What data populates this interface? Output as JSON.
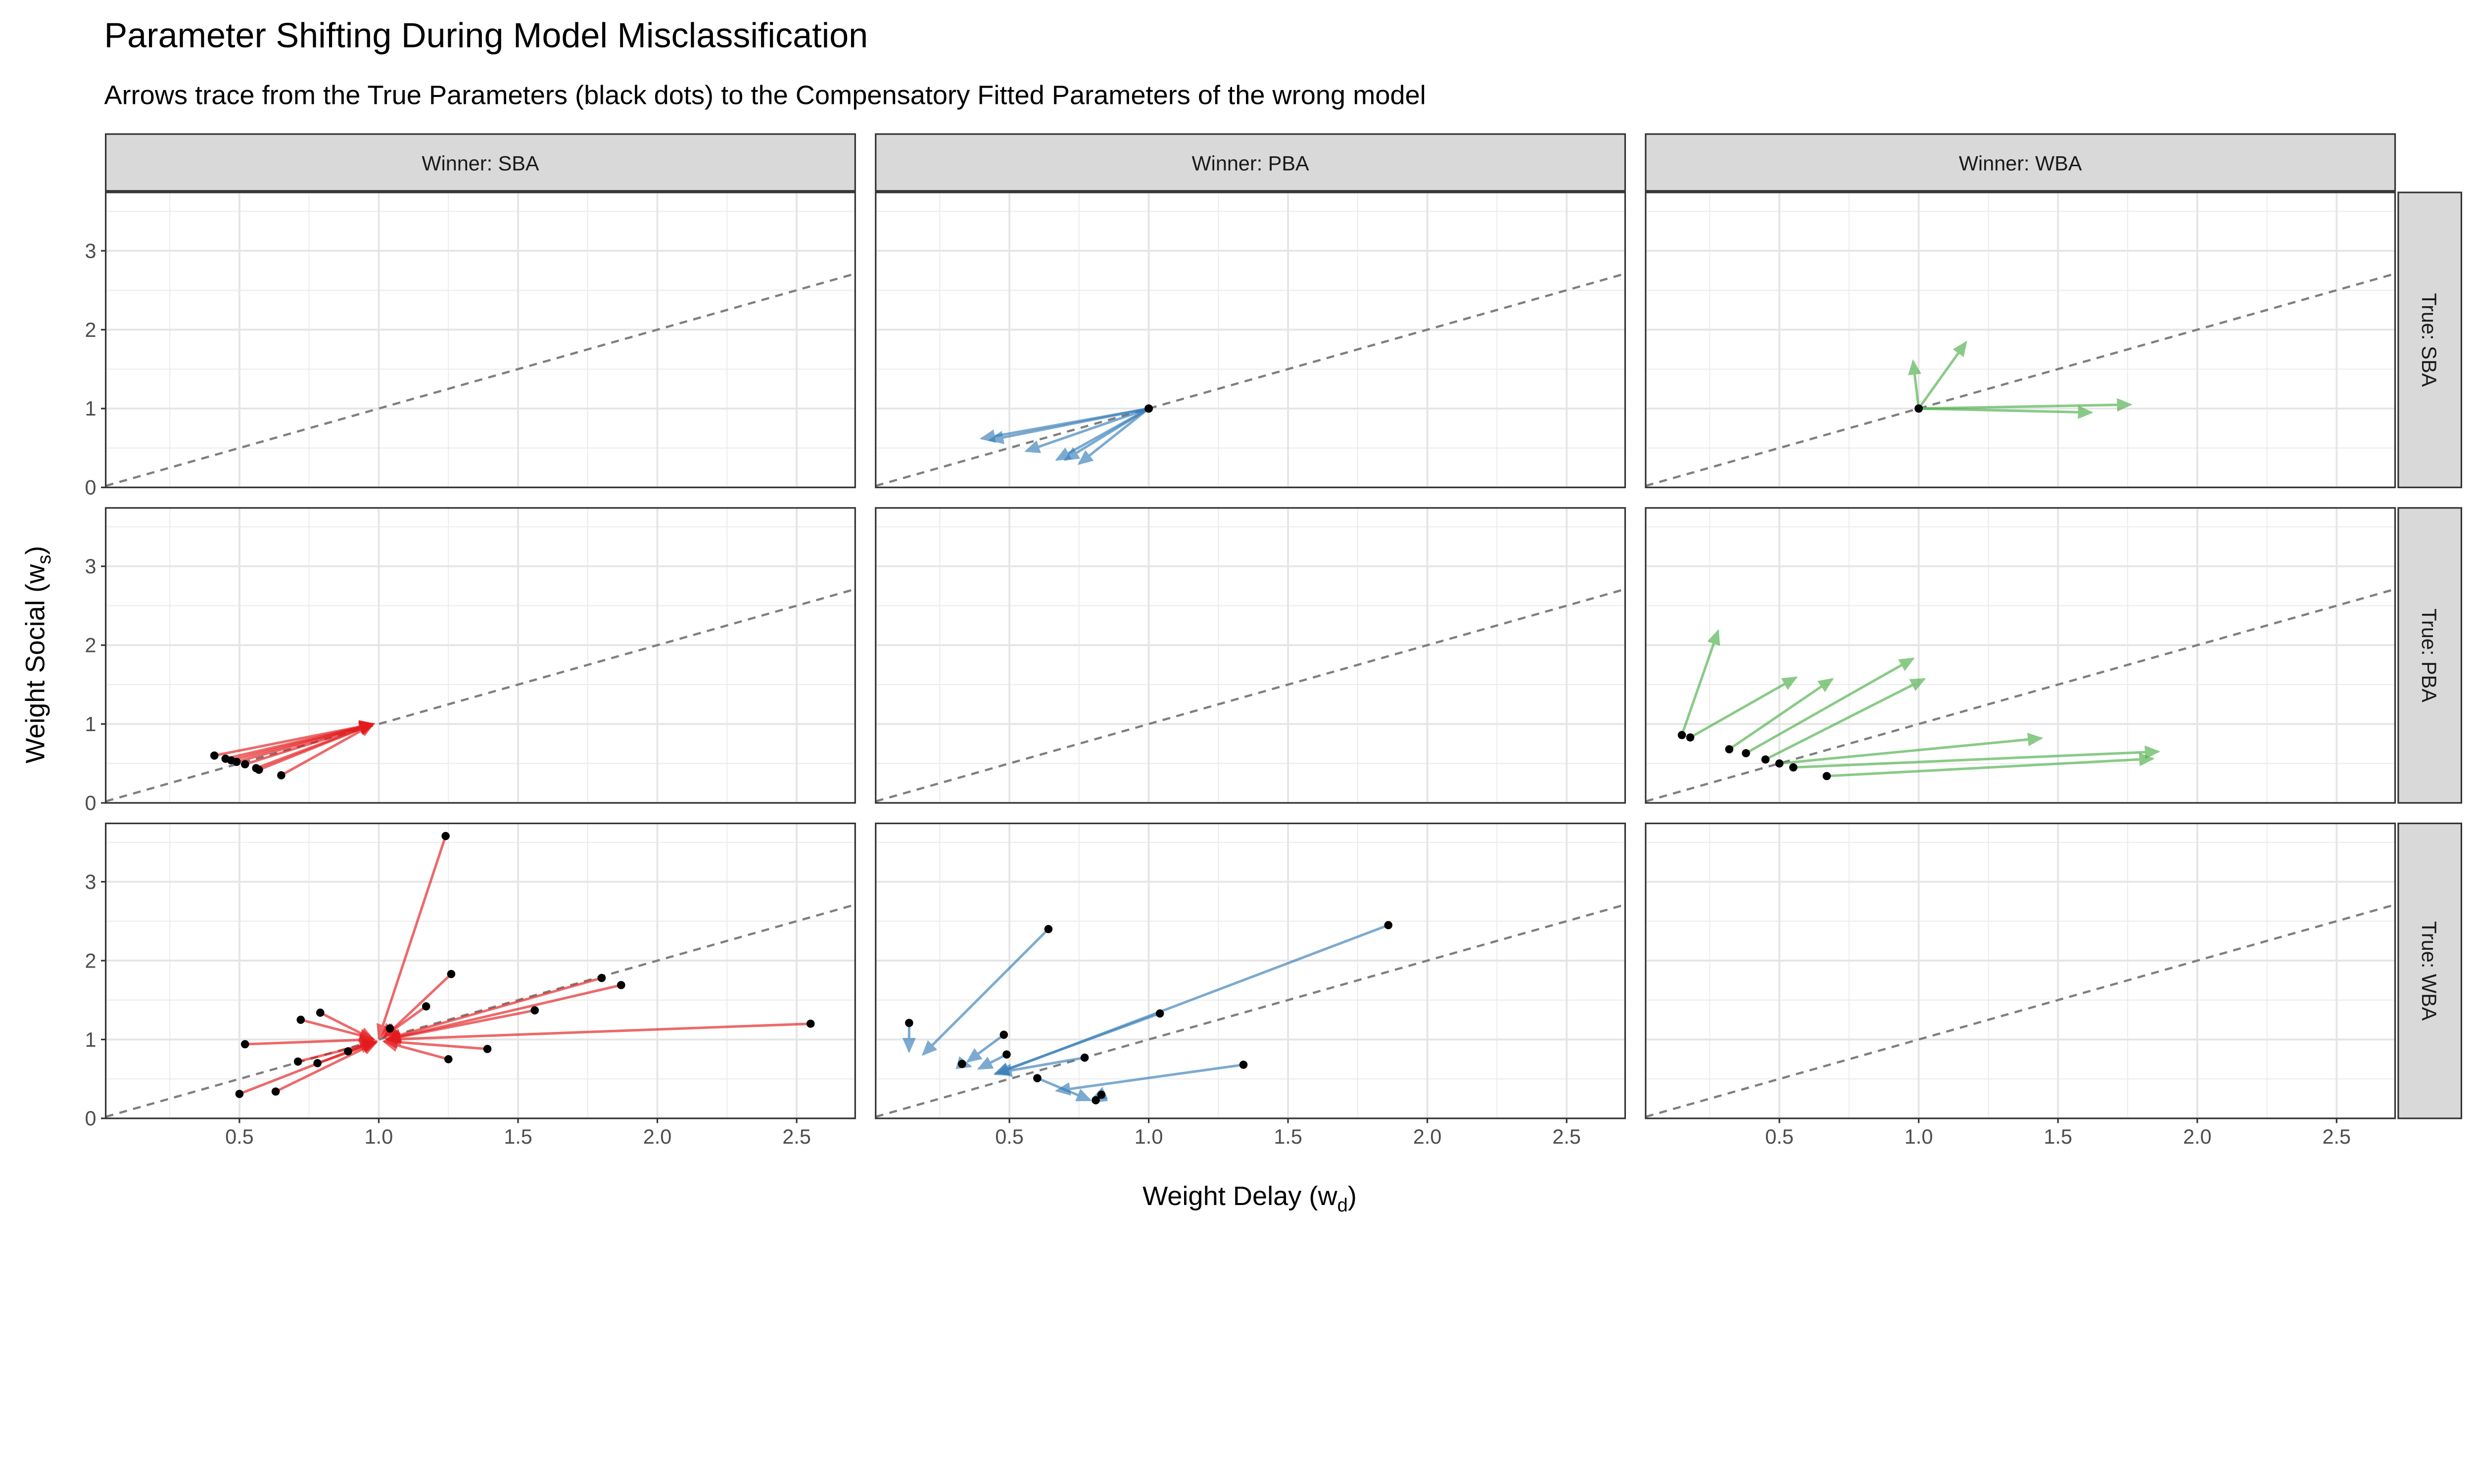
{
  "chart_data": {
    "type": "scatter",
    "title": "Parameter Shifting During Model Misclassification",
    "subtitle": "Arrows trace from the True Parameters (black dots) to the Compensatory Fitted Parameters of the wrong model",
    "xlabel": {
      "main": "Weight Delay (w",
      "sub": "d",
      "close": ")"
    },
    "ylabel": {
      "main": "Weight Social (w",
      "sub": "s",
      "close": ")"
    },
    "xlim": [
      0.02,
      2.71
    ],
    "ylim": [
      0,
      3.74
    ],
    "x_ticks": [
      "0.5",
      "1.0",
      "1.5",
      "2.0",
      "2.5"
    ],
    "y_ticks": [
      "0",
      "1",
      "2",
      "3"
    ],
    "grid": true,
    "reference_line": {
      "slope": 1,
      "intercept": 0,
      "style": "dashed",
      "color": "#7f7f7f"
    },
    "point_color": "#000000",
    "col_strips": [
      "Winner: SBA",
      "Winner: PBA",
      "Winner: WBA"
    ],
    "row_strips": [
      "True: SBA",
      "True: PBA",
      "True: WBA"
    ],
    "winner_colors": {
      "SBA": "#E41A1C",
      "PBA": "#377EB8",
      "WBA": "#4DAF4A"
    },
    "panels": [
      {
        "winner": "SBA",
        "true": "SBA",
        "arrows": []
      },
      {
        "winner": "PBA",
        "true": "SBA",
        "arrows": [
          {
            "from": [
              1.0,
              1.0
            ],
            "to": [
              0.4,
              0.62
            ]
          },
          {
            "from": [
              1.0,
              1.0
            ],
            "to": [
              0.43,
              0.6
            ]
          },
          {
            "from": [
              1.0,
              1.0
            ],
            "to": [
              0.56,
              0.46
            ]
          },
          {
            "from": [
              1.0,
              1.0
            ],
            "to": [
              0.67,
              0.35
            ]
          },
          {
            "from": [
              1.0,
              1.0
            ],
            "to": [
              0.7,
              0.35
            ]
          },
          {
            "from": [
              1.0,
              1.0
            ],
            "to": [
              0.75,
              0.3
            ]
          }
        ]
      },
      {
        "winner": "WBA",
        "true": "SBA",
        "arrows": [
          {
            "from": [
              1.0,
              1.0
            ],
            "to": [
              0.98,
              1.6
            ]
          },
          {
            "from": [
              1.0,
              1.0
            ],
            "to": [
              1.17,
              1.84
            ]
          },
          {
            "from": [
              1.0,
              1.0
            ],
            "to": [
              1.62,
              0.95
            ]
          },
          {
            "from": [
              1.0,
              1.0
            ],
            "to": [
              1.76,
              1.05
            ]
          }
        ]
      },
      {
        "winner": "SBA",
        "true": "PBA",
        "arrows": [
          {
            "from": [
              0.41,
              0.6
            ],
            "to": [
              0.98,
              1.0
            ]
          },
          {
            "from": [
              0.45,
              0.56
            ],
            "to": [
              0.98,
              1.0
            ]
          },
          {
            "from": [
              0.47,
              0.54
            ],
            "to": [
              0.98,
              1.0
            ]
          },
          {
            "from": [
              0.49,
              0.52
            ],
            "to": [
              0.98,
              1.0
            ]
          },
          {
            "from": [
              0.52,
              0.49
            ],
            "to": [
              0.98,
              1.0
            ]
          },
          {
            "from": [
              0.56,
              0.44
            ],
            "to": [
              0.98,
              1.0
            ]
          },
          {
            "from": [
              0.57,
              0.42
            ],
            "to": [
              0.98,
              1.0
            ]
          },
          {
            "from": [
              0.65,
              0.35
            ],
            "to": [
              0.98,
              1.0
            ]
          }
        ]
      },
      {
        "winner": "PBA",
        "true": "PBA",
        "arrows": []
      },
      {
        "winner": "WBA",
        "true": "PBA",
        "arrows": [
          {
            "from": [
              0.15,
              0.86
            ],
            "to": [
              0.28,
              2.18
            ]
          },
          {
            "from": [
              0.18,
              0.83
            ],
            "to": [
              0.56,
              1.59
            ]
          },
          {
            "from": [
              0.32,
              0.68
            ],
            "to": [
              0.69,
              1.57
            ]
          },
          {
            "from": [
              0.38,
              0.63
            ],
            "to": [
              0.98,
              1.83
            ]
          },
          {
            "from": [
              0.45,
              0.55
            ],
            "to": [
              1.02,
              1.57
            ]
          },
          {
            "from": [
              0.5,
              0.5
            ],
            "to": [
              1.44,
              0.82
            ]
          },
          {
            "from": [
              0.55,
              0.45
            ],
            "to": [
              1.86,
              0.65
            ]
          },
          {
            "from": [
              0.67,
              0.34
            ],
            "to": [
              1.84,
              0.56
            ]
          }
        ]
      },
      {
        "winner": "SBA",
        "true": "WBA",
        "arrows": [
          {
            "from": [
              1.24,
              3.58
            ],
            "to": [
              1.0,
              1.02
            ]
          },
          {
            "from": [
              1.26,
              1.83
            ],
            "to": [
              1.02,
              1.03
            ]
          },
          {
            "from": [
              1.8,
              1.78
            ],
            "to": [
              1.03,
              1.01
            ]
          },
          {
            "from": [
              1.87,
              1.69
            ],
            "to": [
              1.03,
              1.0
            ]
          },
          {
            "from": [
              1.17,
              1.42
            ],
            "to": [
              1.02,
              1.04
            ]
          },
          {
            "from": [
              1.56,
              1.37
            ],
            "to": [
              1.03,
              1.0
            ]
          },
          {
            "from": [
              0.79,
              1.34
            ],
            "to": [
              0.98,
              1.0
            ]
          },
          {
            "from": [
              0.72,
              1.25
            ],
            "to": [
              0.98,
              1.01
            ]
          },
          {
            "from": [
              1.04,
              1.14
            ],
            "to": [
              1.01,
              1.03
            ]
          },
          {
            "from": [
              2.55,
              1.2
            ],
            "to": [
              1.03,
              1.0
            ]
          },
          {
            "from": [
              0.52,
              0.94
            ],
            "to": [
              0.98,
              1.0
            ]
          },
          {
            "from": [
              1.39,
              0.88
            ],
            "to": [
              1.02,
              0.98
            ]
          },
          {
            "from": [
              1.25,
              0.75
            ],
            "to": [
              1.02,
              0.97
            ]
          },
          {
            "from": [
              0.89,
              0.85
            ],
            "to": [
              0.99,
              0.98
            ]
          },
          {
            "from": [
              0.71,
              0.72
            ],
            "to": [
              0.99,
              0.97
            ]
          },
          {
            "from": [
              0.78,
              0.7
            ],
            "to": [
              0.99,
              0.96
            ]
          },
          {
            "from": [
              0.5,
              0.31
            ],
            "to": [
              0.98,
              0.97
            ]
          },
          {
            "from": [
              0.63,
              0.34
            ],
            "to": [
              0.99,
              0.96
            ]
          }
        ]
      },
      {
        "winner": "PBA",
        "true": "WBA",
        "arrows": [
          {
            "from": [
              0.14,
              1.21
            ],
            "to": [
              0.14,
              0.85
            ]
          },
          {
            "from": [
              0.64,
              2.4
            ],
            "to": [
              0.19,
              0.81
            ]
          },
          {
            "from": [
              1.86,
              2.45
            ],
            "to": [
              0.45,
              0.56
            ]
          },
          {
            "from": [
              1.04,
              1.33
            ],
            "to": [
              0.45,
              0.57
            ]
          },
          {
            "from": [
              0.48,
              1.06
            ],
            "to": [
              0.35,
              0.72
            ]
          },
          {
            "from": [
              0.49,
              0.81
            ],
            "to": [
              0.39,
              0.63
            ]
          },
          {
            "from": [
              0.33,
              0.69
            ],
            "to": [
              0.36,
              0.66
            ]
          },
          {
            "from": [
              0.77,
              0.77
            ],
            "to": [
              0.46,
              0.58
            ]
          },
          {
            "from": [
              1.34,
              0.68
            ],
            "to": [
              0.67,
              0.35
            ]
          },
          {
            "from": [
              0.6,
              0.51
            ],
            "to": [
              0.79,
              0.23
            ]
          },
          {
            "from": [
              0.83,
              0.3
            ],
            "to": [
              0.8,
              0.25
            ]
          },
          {
            "from": [
              0.81,
              0.23
            ],
            "to": [
              0.8,
              0.21
            ]
          }
        ]
      },
      {
        "winner": "WBA",
        "true": "WBA",
        "arrows": []
      }
    ]
  }
}
